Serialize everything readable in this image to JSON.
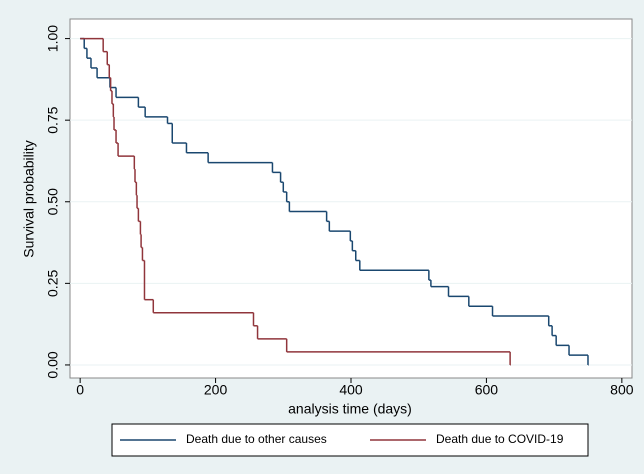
{
  "chart_data": {
    "type": "step",
    "x_label": "analysis time (days)",
    "y_label": "Survival probability",
    "xlim": [
      -15,
      815
    ],
    "ylim": [
      -0.04,
      1.06
    ],
    "xticks": [
      0,
      200,
      400,
      600,
      800
    ],
    "yticks": [
      {
        "value": 0,
        "label": "0.00"
      },
      {
        "value": 0.25,
        "label": "0.25"
      },
      {
        "value": 0.5,
        "label": "0.50"
      },
      {
        "value": 0.75,
        "label": "0.75"
      },
      {
        "value": 1,
        "label": "1.00"
      }
    ],
    "grid": true,
    "legend": "bottom",
    "series": [
      {
        "name": "Death due to other causes",
        "color": "#1a476f",
        "x": [
          0,
          6,
          10,
          16,
          25,
          44,
          53,
          86,
          96,
          129,
          136,
          157,
          189,
          284,
          296,
          300,
          305,
          309,
          364,
          368,
          399,
          402,
          407,
          413,
          515,
          518,
          544,
          574,
          609,
          692,
          697,
          703,
          722,
          750
        ],
        "values": [
          1.0,
          0.97,
          0.94,
          0.91,
          0.88,
          0.85,
          0.82,
          0.79,
          0.76,
          0.74,
          0.68,
          0.65,
          0.62,
          0.59,
          0.56,
          0.53,
          0.5,
          0.47,
          0.44,
          0.41,
          0.38,
          0.35,
          0.32,
          0.29,
          0.26,
          0.24,
          0.21,
          0.18,
          0.15,
          0.12,
          0.09,
          0.06,
          0.03,
          0.0
        ]
      },
      {
        "name": "Death due to COVID-19",
        "color": "#90353b",
        "x": [
          0,
          34,
          40,
          43,
          45,
          47,
          49,
          50,
          53,
          56,
          80,
          81,
          83,
          84,
          86,
          89,
          90,
          92,
          95,
          108,
          256,
          262,
          305,
          635
        ],
        "values": [
          1.0,
          0.96,
          0.92,
          0.88,
          0.84,
          0.8,
          0.76,
          0.72,
          0.68,
          0.64,
          0.6,
          0.56,
          0.52,
          0.48,
          0.44,
          0.4,
          0.36,
          0.32,
          0.2,
          0.16,
          0.12,
          0.08,
          0.04,
          0.0
        ]
      }
    ]
  }
}
